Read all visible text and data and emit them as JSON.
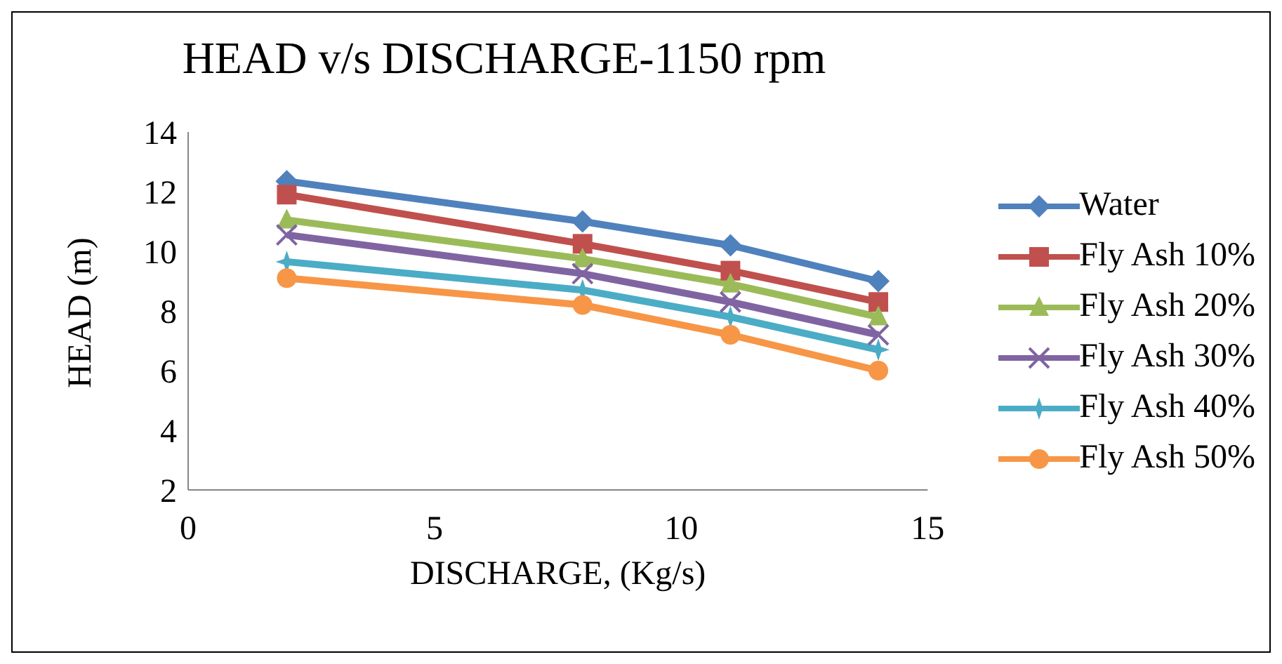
{
  "chart_data": {
    "type": "line",
    "title": "HEAD v/s DISCHARGE-1150 rpm",
    "xlabel": "DISCHARGE, (Kg/s)",
    "ylabel": "HEAD (m)",
    "x": [
      2,
      8,
      11,
      14
    ],
    "series": [
      {
        "name": "Water",
        "color": "#4f81bd",
        "marker": "diamond",
        "values": [
          12.35,
          11.0,
          10.2,
          9.0
        ]
      },
      {
        "name": "Fly Ash 10%",
        "color": "#c0504d",
        "marker": "square",
        "values": [
          11.9,
          10.25,
          9.35,
          8.3
        ]
      },
      {
        "name": "Fly Ash 20%",
        "color": "#9bbb59",
        "marker": "triangle",
        "values": [
          11.05,
          9.75,
          8.9,
          7.8
        ]
      },
      {
        "name": "Fly Ash 30%",
        "color": "#8064a2",
        "marker": "cross",
        "values": [
          10.55,
          9.25,
          8.3,
          7.2
        ]
      },
      {
        "name": "Fly Ash 40%",
        "color": "#4bacc6",
        "marker": "star",
        "values": [
          9.65,
          8.7,
          7.8,
          6.7
        ]
      },
      {
        "name": "Fly Ash 50%",
        "color": "#f79646",
        "marker": "circle",
        "values": [
          9.1,
          8.2,
          7.2,
          6.0
        ]
      }
    ],
    "xlim": [
      0,
      15
    ],
    "xticks": [
      0,
      5,
      10,
      15
    ],
    "ylim": [
      2,
      14
    ],
    "yticks": [
      2,
      4,
      6,
      8,
      10,
      12,
      14
    ],
    "grid": false,
    "legend": "right",
    "line_style": "solid"
  }
}
